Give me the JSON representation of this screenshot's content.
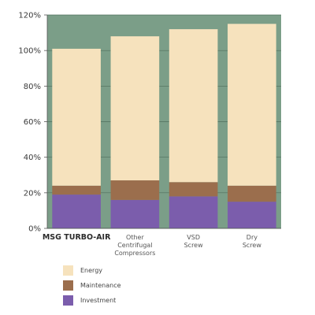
{
  "chart_data": {
    "type": "bar",
    "stacked": true,
    "categories": [
      [
        "MSG TURBO-AIR"
      ],
      [
        "Other",
        "Centrifugal",
        "Compressors"
      ],
      [
        "VSD",
        "Screw"
      ],
      [
        "Dry",
        "Screw"
      ]
    ],
    "series": [
      {
        "name": "Investment",
        "values": [
          19,
          16,
          18,
          15
        ],
        "color": "#7b5dac"
      },
      {
        "name": "Maintenance",
        "values": [
          5,
          11,
          8,
          9
        ],
        "color": "#9b6e4d"
      },
      {
        "name": "Energy",
        "values": [
          77,
          81,
          86,
          91
        ],
        "color": "#f6e2bd"
      }
    ],
    "legend_order": [
      "Energy",
      "Maintenance",
      "Investment"
    ],
    "ylim": [
      0,
      120
    ],
    "yticks": [
      "0%",
      "20%",
      "40%",
      "60%",
      "80%",
      "100%",
      "120%"
    ],
    "grid": true,
    "legend_position": "bottom-left",
    "plot_background": "#7b9e88"
  }
}
